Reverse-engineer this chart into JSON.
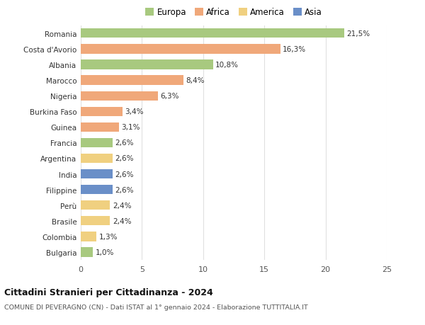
{
  "countries": [
    "Romania",
    "Costa d'Avorio",
    "Albania",
    "Marocco",
    "Nigeria",
    "Burkina Faso",
    "Guinea",
    "Francia",
    "Argentina",
    "India",
    "Filippine",
    "Perù",
    "Brasile",
    "Colombia",
    "Bulgaria"
  ],
  "values": [
    21.5,
    16.3,
    10.8,
    8.4,
    6.3,
    3.4,
    3.1,
    2.6,
    2.6,
    2.6,
    2.6,
    2.4,
    2.4,
    1.3,
    1.0
  ],
  "labels": [
    "21,5%",
    "16,3%",
    "10,8%",
    "8,4%",
    "6,3%",
    "3,4%",
    "3,1%",
    "2,6%",
    "2,6%",
    "2,6%",
    "2,6%",
    "2,4%",
    "2,4%",
    "1,3%",
    "1,0%"
  ],
  "continents": [
    "Europa",
    "Africa",
    "Europa",
    "Africa",
    "Africa",
    "Africa",
    "Africa",
    "Europa",
    "America",
    "Asia",
    "Asia",
    "America",
    "America",
    "America",
    "Europa"
  ],
  "colors": {
    "Europa": "#a8c97f",
    "Africa": "#f0a87a",
    "America": "#f0d080",
    "Asia": "#6a8fc8"
  },
  "legend_order": [
    "Europa",
    "Africa",
    "America",
    "Asia"
  ],
  "title": "Cittadini Stranieri per Cittadinanza - 2024",
  "subtitle": "COMUNE DI PEVERAGNO (CN) - Dati ISTAT al 1° gennaio 2024 - Elaborazione TUTTITALIA.IT",
  "xlim": [
    0,
    25
  ],
  "xticks": [
    0,
    5,
    10,
    15,
    20,
    25
  ],
  "bg_color": "#ffffff",
  "grid_color": "#e0e0e0",
  "bar_height": 0.6
}
